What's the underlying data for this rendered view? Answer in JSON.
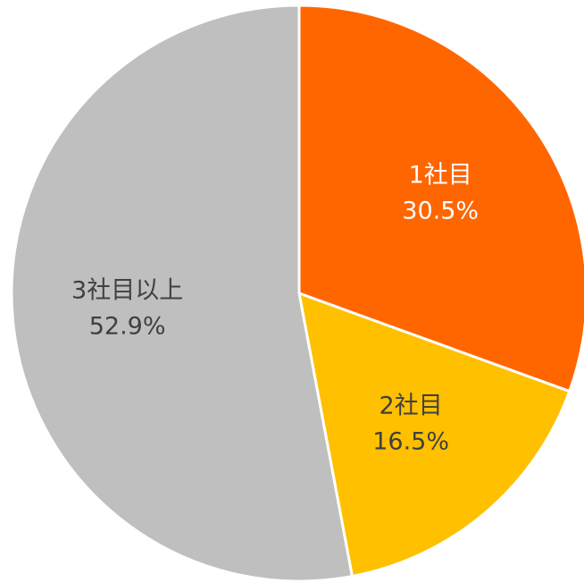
{
  "chart_data": {
    "type": "pie",
    "categories": [
      "1社目",
      "2社目",
      "3社目以上"
    ],
    "values": [
      30.5,
      16.5,
      52.9
    ],
    "value_labels": [
      "30.5%",
      "16.5%",
      "52.9%"
    ],
    "colors": [
      "#ff6600",
      "#ffc000",
      "#bfbfbf"
    ],
    "label_colors": [
      "#ffffff",
      "#404040",
      "#404040"
    ]
  }
}
